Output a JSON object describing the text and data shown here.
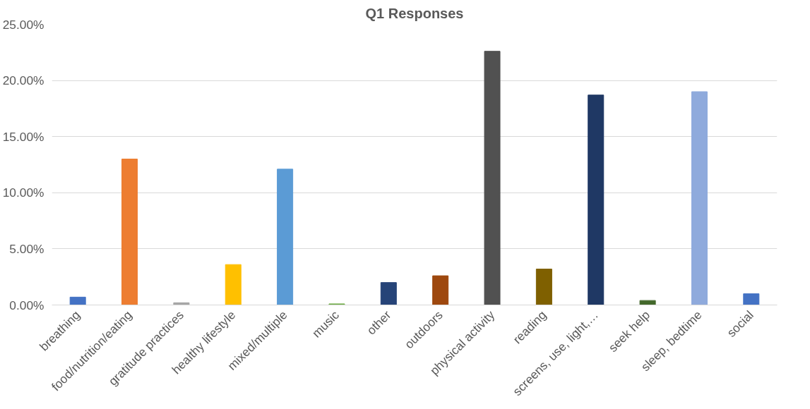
{
  "chart_data": {
    "type": "bar",
    "title": "Q1 Responses",
    "categories": [
      "breathing",
      "food/nutrition/eating",
      "gratitude practices",
      "healthy lifestyle",
      "mixed/multiple",
      "music",
      "other",
      "outdoors",
      "physical activity",
      "reading",
      "screens, use, light,…",
      "seek help",
      "sleep, bedtime",
      "social"
    ],
    "values": [
      0.7,
      13.0,
      0.2,
      3.6,
      12.1,
      0.1,
      2.0,
      2.6,
      22.6,
      3.2,
      18.7,
      0.4,
      19.0,
      1.0
    ],
    "colors": [
      "#4472c4",
      "#ed7d31",
      "#a5a5a5",
      "#ffc000",
      "#5b9bd5",
      "#70ad47",
      "#264478",
      "#9e480e",
      "#515151",
      "#7f6000",
      "#1f3864",
      "#43682b",
      "#8faadc",
      "#4472c4"
    ],
    "ylim": [
      0,
      25
    ],
    "yticks": [
      {
        "value": 0,
        "label": "0.00%"
      },
      {
        "value": 5,
        "label": "5.00%"
      },
      {
        "value": 10,
        "label": "10.00%"
      },
      {
        "value": 15,
        "label": "15.00%"
      },
      {
        "value": 20,
        "label": "20.00%"
      },
      {
        "value": 25,
        "label": "25.00%"
      }
    ],
    "grid": "y"
  }
}
